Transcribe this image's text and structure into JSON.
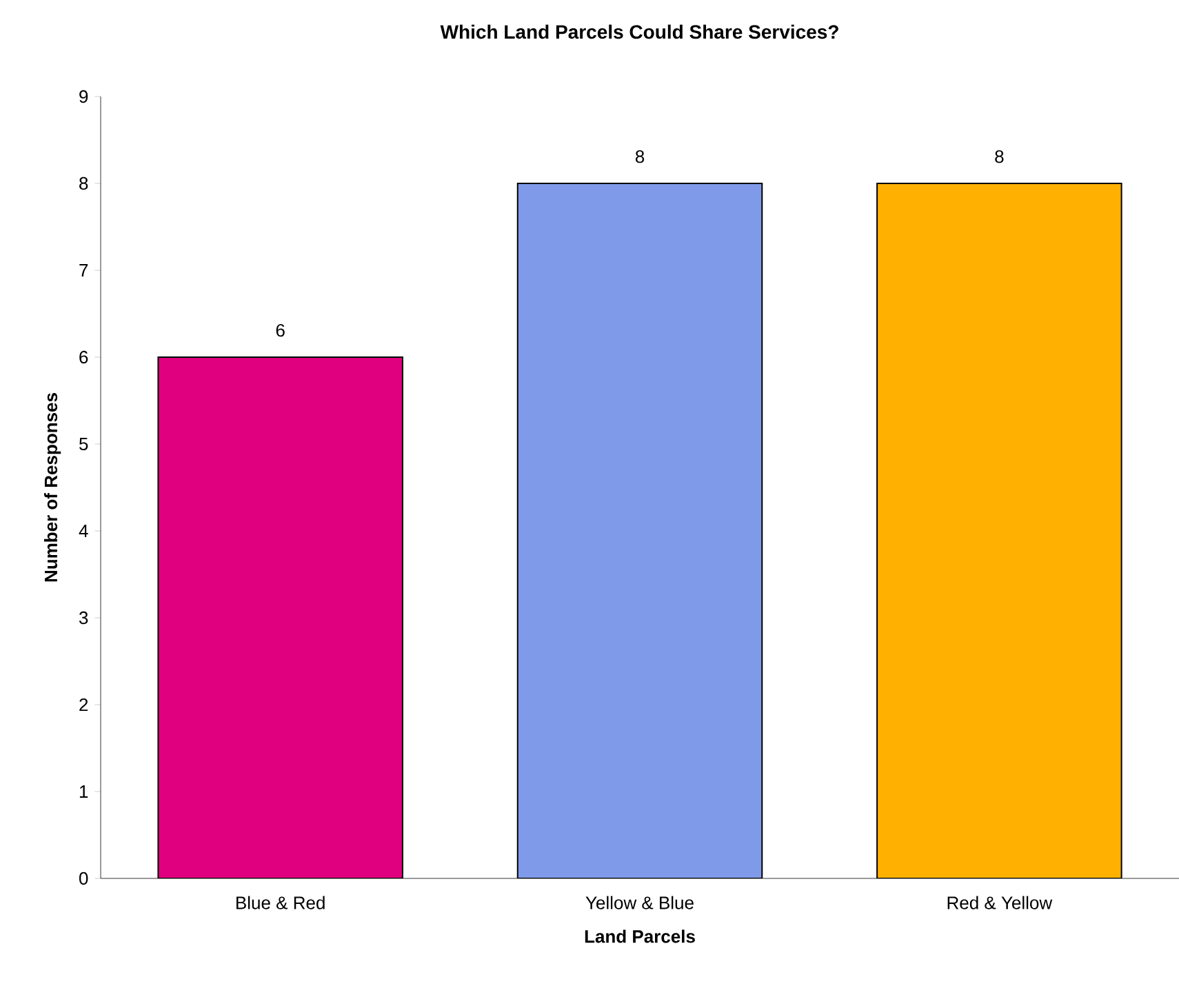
{
  "chart_data": {
    "type": "bar",
    "title": "Which Land Parcels Could Share Services?",
    "xlabel": "Land Parcels",
    "ylabel": "Number of Responses",
    "categories": [
      "Blue & Red",
      "Yellow  & Blue",
      "Red & Yellow"
    ],
    "values": [
      6,
      8,
      8
    ],
    "colors": [
      "#e0007f",
      "#7f9ae8",
      "#ffb000"
    ],
    "ylim": [
      0,
      9
    ],
    "yticks": [
      0,
      1,
      2,
      3,
      4,
      5,
      6,
      7,
      8,
      9
    ],
    "data_labels": true,
    "grid": false
  }
}
